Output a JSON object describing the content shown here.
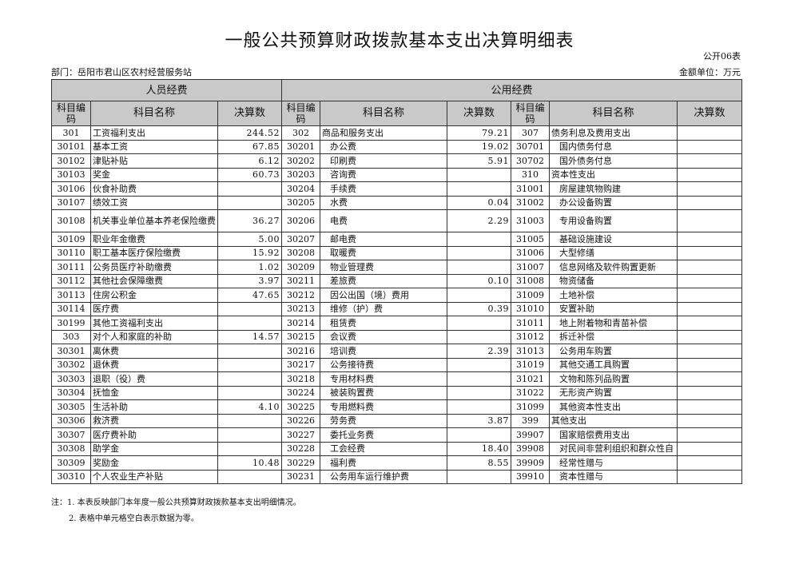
{
  "title": "一般公共预算财政拨款基本支出决算明细表",
  "form_no": "公开06表",
  "department": "部门：岳阳市君山区农村经营服务站",
  "unit": "金额单位：万元",
  "groups": {
    "personnel": "人员经费",
    "public": "公用经费"
  },
  "headers": {
    "code": "科目编码",
    "name": "科目名称",
    "amount": "决算数"
  },
  "personnel_rows": [
    {
      "code": "301",
      "name": "工资福利支出",
      "amount": "244.52"
    },
    {
      "code": "30101",
      "name": "基本工资",
      "amount": "67.85"
    },
    {
      "code": "30102",
      "name": "津贴补贴",
      "amount": "6.12"
    },
    {
      "code": "30103",
      "name": "奖金",
      "amount": "60.73"
    },
    {
      "code": "30106",
      "name": "伙食补助费",
      "amount": ""
    },
    {
      "code": "30107",
      "name": "绩效工资",
      "amount": ""
    },
    {
      "code": "30108",
      "name": "机关事业单位基本养老保险缴费",
      "amount": "36.27"
    },
    {
      "code": "30109",
      "name": "职业年金缴费",
      "amount": "5.00"
    },
    {
      "code": "30110",
      "name": "职工基本医疗保险缴费",
      "amount": "15.92"
    },
    {
      "code": "30111",
      "name": "公务员医疗补助缴费",
      "amount": "1.02"
    },
    {
      "code": "30112",
      "name": "其他社会保障缴费",
      "amount": "3.97"
    },
    {
      "code": "30113",
      "name": "住房公积金",
      "amount": "47.65"
    },
    {
      "code": "30114",
      "name": "医疗费",
      "amount": ""
    },
    {
      "code": "30199",
      "name": "其他工资福利支出",
      "amount": ""
    },
    {
      "code": "303",
      "name": "对个人和家庭的补助",
      "amount": "14.57"
    },
    {
      "code": "30301",
      "name": "离休费",
      "amount": ""
    },
    {
      "code": "30302",
      "name": "退休费",
      "amount": ""
    },
    {
      "code": "30303",
      "name": "退职（役）费",
      "amount": ""
    },
    {
      "code": "30304",
      "name": "抚恤金",
      "amount": ""
    },
    {
      "code": "30305",
      "name": "生活补助",
      "amount": "4.10"
    },
    {
      "code": "30306",
      "name": "救济费",
      "amount": ""
    },
    {
      "code": "30307",
      "name": "医疗费补助",
      "amount": ""
    },
    {
      "code": "30308",
      "name": "助学金",
      "amount": ""
    },
    {
      "code": "30309",
      "name": "奖励金",
      "amount": "10.48"
    },
    {
      "code": "30310",
      "name": "个人农业生产补贴",
      "amount": ""
    }
  ],
  "public_rows_a": [
    {
      "code": "302",
      "name": "商品和服务支出",
      "amount": "79.21"
    },
    {
      "code": "30201",
      "name": "办公费",
      "amount": "19.02"
    },
    {
      "code": "30202",
      "name": "印刷费",
      "amount": "5.91"
    },
    {
      "code": "30203",
      "name": "咨询费",
      "amount": ""
    },
    {
      "code": "30204",
      "name": "手续费",
      "amount": ""
    },
    {
      "code": "30205",
      "name": "水费",
      "amount": "0.04"
    },
    {
      "code": "30206",
      "name": "电费",
      "amount": "2.29"
    },
    {
      "code": "30207",
      "name": "邮电费",
      "amount": ""
    },
    {
      "code": "30208",
      "name": "取暖费",
      "amount": ""
    },
    {
      "code": "30209",
      "name": "物业管理费",
      "amount": ""
    },
    {
      "code": "30211",
      "name": "差旅费",
      "amount": "0.10"
    },
    {
      "code": "30212",
      "name": "因公出国（境）费用",
      "amount": ""
    },
    {
      "code": "30213",
      "name": "维修（护）费",
      "amount": "0.39"
    },
    {
      "code": "30214",
      "name": "租赁费",
      "amount": ""
    },
    {
      "code": "30215",
      "name": "会议费",
      "amount": ""
    },
    {
      "code": "30216",
      "name": "培训费",
      "amount": "2.39"
    },
    {
      "code": "30217",
      "name": "公务接待费",
      "amount": ""
    },
    {
      "code": "30218",
      "name": "专用材料费",
      "amount": ""
    },
    {
      "code": "30224",
      "name": "被装购置费",
      "amount": ""
    },
    {
      "code": "30225",
      "name": "专用燃料费",
      "amount": ""
    },
    {
      "code": "30226",
      "name": "劳务费",
      "amount": "3.87"
    },
    {
      "code": "30227",
      "name": "委托业务费",
      "amount": ""
    },
    {
      "code": "30228",
      "name": "工会经费",
      "amount": "18.40"
    },
    {
      "code": "30229",
      "name": "福利费",
      "amount": "8.55"
    },
    {
      "code": "30231",
      "name": "公务用车运行维护费",
      "amount": ""
    }
  ],
  "public_rows_b": [
    {
      "code": "307",
      "name": "债务利息及费用支出",
      "amount": ""
    },
    {
      "code": "30701",
      "name": "国内债务付息",
      "amount": ""
    },
    {
      "code": "30702",
      "name": "国外债务付息",
      "amount": ""
    },
    {
      "code": "310",
      "name": "资本性支出",
      "amount": ""
    },
    {
      "code": "31001",
      "name": "房屋建筑物购建",
      "amount": ""
    },
    {
      "code": "31002",
      "name": "办公设备购置",
      "amount": ""
    },
    {
      "code": "31003",
      "name": "专用设备购置",
      "amount": ""
    },
    {
      "code": "31005",
      "name": "基础设施建设",
      "amount": ""
    },
    {
      "code": "31006",
      "name": "大型修缮",
      "amount": ""
    },
    {
      "code": "31007",
      "name": "信息网络及软件购置更新",
      "amount": ""
    },
    {
      "code": "31008",
      "name": "物资储备",
      "amount": ""
    },
    {
      "code": "31009",
      "name": "土地补偿",
      "amount": ""
    },
    {
      "code": "31010",
      "name": "安置补助",
      "amount": ""
    },
    {
      "code": "31011",
      "name": "地上附着物和青苗补偿",
      "amount": ""
    },
    {
      "code": "31012",
      "name": "拆迁补偿",
      "amount": ""
    },
    {
      "code": "31013",
      "name": "公务用车购置",
      "amount": ""
    },
    {
      "code": "31019",
      "name": "其他交通工具购置",
      "amount": ""
    },
    {
      "code": "31021",
      "name": "文物和陈列品购置",
      "amount": ""
    },
    {
      "code": "31022",
      "name": "无形资产购置",
      "amount": ""
    },
    {
      "code": "31099",
      "name": "其他资本性支出",
      "amount": ""
    },
    {
      "code": "399",
      "name": "其他支出",
      "amount": ""
    },
    {
      "code": "39907",
      "name": "国家赔偿费用支出",
      "amount": ""
    },
    {
      "code": "39908",
      "name": "对民间非营利组织和群众性自",
      "amount": ""
    },
    {
      "code": "39909",
      "name": "经常性赠与",
      "amount": ""
    },
    {
      "code": "39910",
      "name": "资本性赠与",
      "amount": ""
    }
  ],
  "notes": [
    "注：1. 本表反映部门本年度一般公共预算财政拨款基本支出明细情况。",
    "2. 表格中单元格空白表示数据为零。"
  ]
}
